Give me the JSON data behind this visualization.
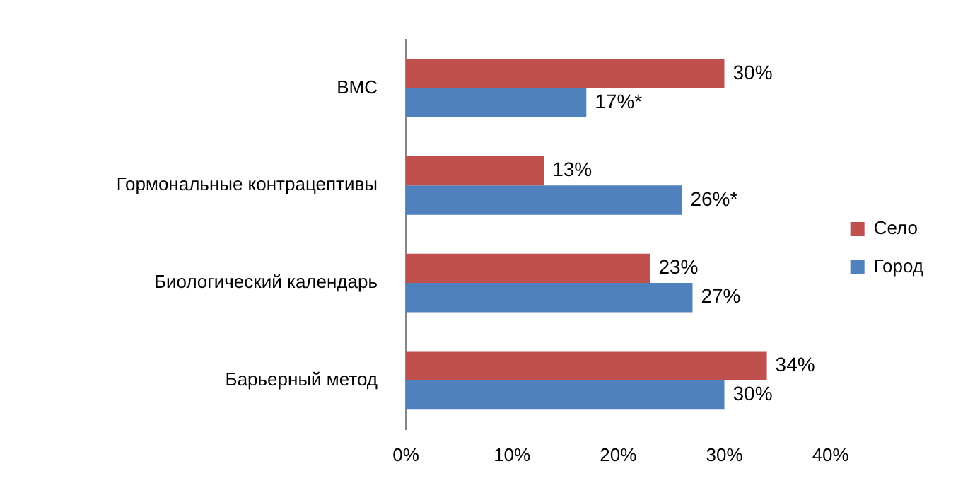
{
  "chart_data": {
    "type": "bar",
    "orientation": "horizontal",
    "categories": [
      "ВМС",
      "Гормональные контрацептивы",
      "Биологический календарь",
      "Барьерный метод"
    ],
    "series": [
      {
        "name": "Село",
        "color": "#c0504d",
        "values": [
          30,
          13,
          23,
          34
        ],
        "value_labels": [
          "30%",
          "13%",
          "23%",
          "34%"
        ]
      },
      {
        "name": "Город",
        "color": "#4f81bd",
        "values": [
          17,
          26,
          27,
          30
        ],
        "value_labels": [
          "17%*",
          "26%*",
          "27%",
          "30%"
        ]
      }
    ],
    "xlim": [
      0,
      40
    ],
    "xticks": [
      {
        "value": 0,
        "label": "0%"
      },
      {
        "value": 10,
        "label": "10%"
      },
      {
        "value": 20,
        "label": "20%"
      },
      {
        "value": 30,
        "label": "30%"
      },
      {
        "value": 40,
        "label": "40%"
      }
    ],
    "grid": false,
    "legend": "right"
  }
}
